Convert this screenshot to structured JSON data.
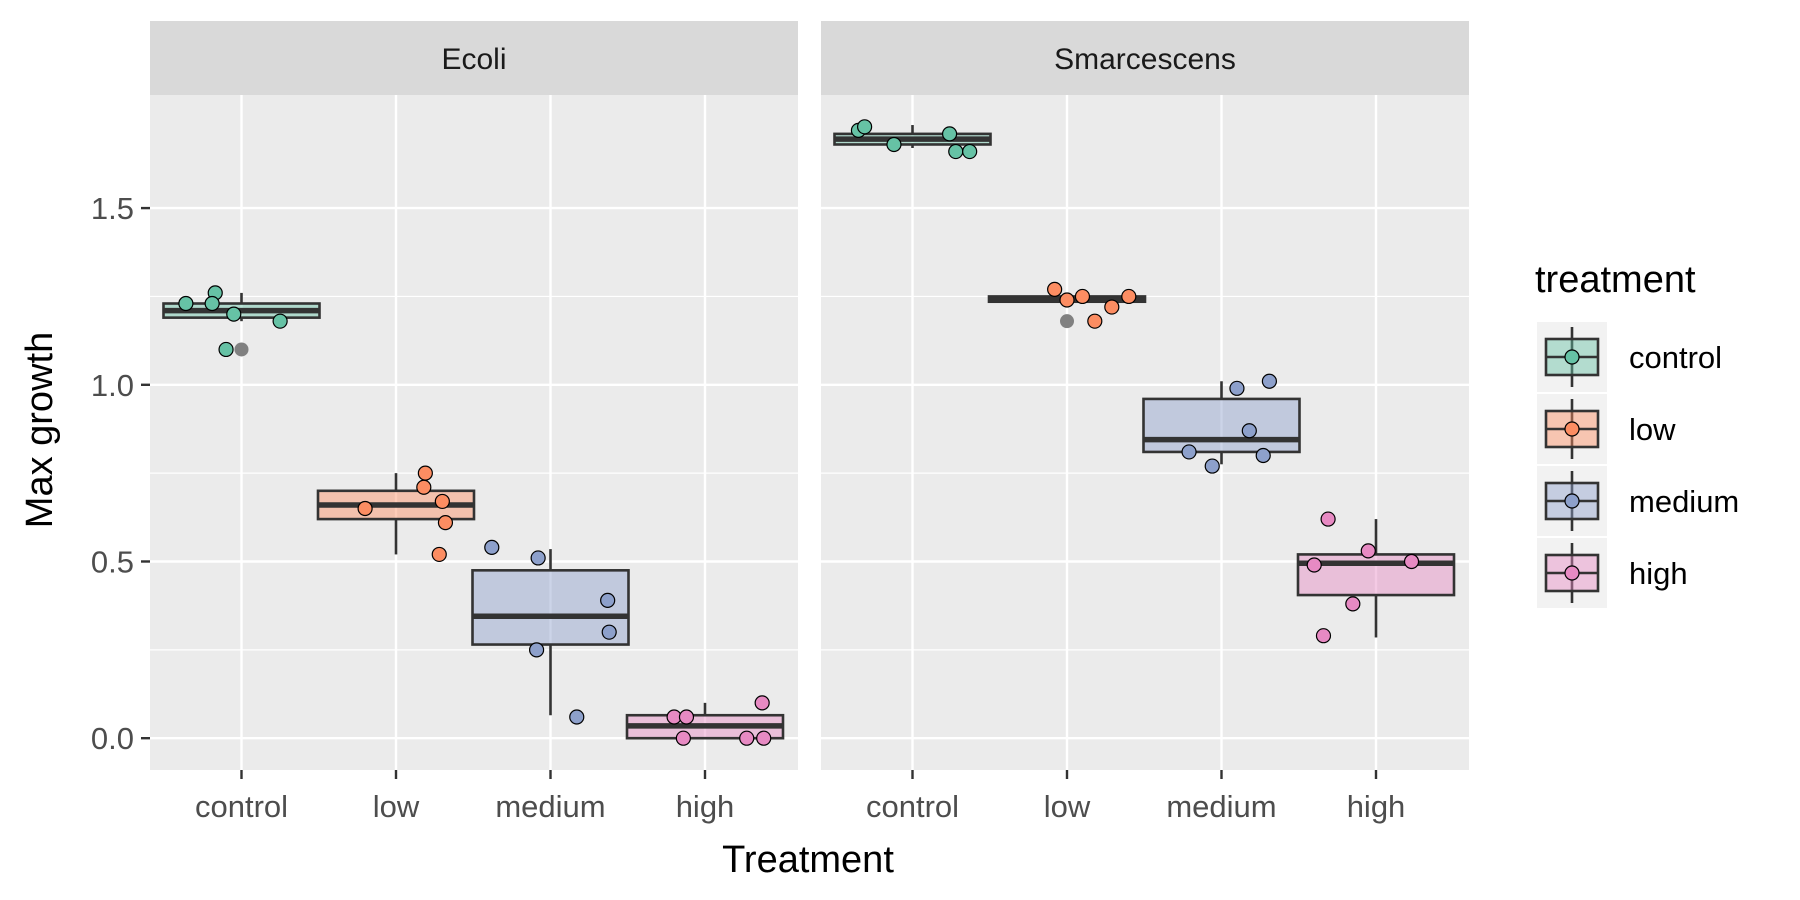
{
  "chart_data": {
    "type": "box",
    "xlabel": "Treatment",
    "ylabel": "Max growth",
    "categories": [
      "control",
      "low",
      "medium",
      "high"
    ],
    "ylim": [
      -0.09,
      1.82
    ],
    "yticks": [
      0.0,
      0.5,
      1.0,
      1.5
    ],
    "ytick_labels": [
      "0.0",
      "0.5",
      "1.0",
      "1.5"
    ],
    "colors": {
      "control": "#66c2a5",
      "low": "#fc8d62",
      "medium": "#8da0cb",
      "high": "#e78ac3",
      "outlier": "#808080",
      "panel_bg": "#ebebeb",
      "strip_bg": "#d9d9d9",
      "grid": "#ffffff",
      "box_line": "#333333"
    },
    "legend": {
      "title": "treatment",
      "items": [
        "control",
        "low",
        "medium",
        "high"
      ],
      "position": "right"
    },
    "panels": [
      {
        "name": "Ecoli",
        "boxes": [
          {
            "category": "control",
            "q1": 1.19,
            "median": 1.21,
            "q3": 1.23,
            "whisker_low": 1.18,
            "whisker_high": 1.26,
            "outliers": [
              1.1
            ]
          },
          {
            "category": "low",
            "q1": 0.62,
            "median": 0.66,
            "q3": 0.7,
            "whisker_low": 0.52,
            "whisker_high": 0.75,
            "outliers": []
          },
          {
            "category": "medium",
            "q1": 0.265,
            "median": 0.345,
            "q3": 0.475,
            "whisker_low": 0.065,
            "whisker_high": 0.535,
            "outliers": []
          },
          {
            "category": "high",
            "q1": 0.0,
            "median": 0.035,
            "q3": 0.065,
            "whisker_low": 0.0,
            "whisker_high": 0.1,
            "outliers": []
          }
        ],
        "points": [
          {
            "category": "control",
            "offset": -0.36,
            "value": 1.23
          },
          {
            "category": "control",
            "offset": -0.17,
            "value": 1.26
          },
          {
            "category": "control",
            "offset": -0.19,
            "value": 1.23
          },
          {
            "category": "control",
            "offset": -0.05,
            "value": 1.2
          },
          {
            "category": "control",
            "offset": 0.25,
            "value": 1.18
          },
          {
            "category": "control",
            "offset": -0.1,
            "value": 1.1
          },
          {
            "category": "low",
            "offset": -0.2,
            "value": 0.65
          },
          {
            "category": "low",
            "offset": 0.18,
            "value": 0.71
          },
          {
            "category": "low",
            "offset": 0.19,
            "value": 0.75
          },
          {
            "category": "low",
            "offset": 0.3,
            "value": 0.67
          },
          {
            "category": "low",
            "offset": 0.32,
            "value": 0.61
          },
          {
            "category": "low",
            "offset": 0.28,
            "value": 0.52
          },
          {
            "category": "medium",
            "offset": -0.38,
            "value": 0.54
          },
          {
            "category": "medium",
            "offset": -0.08,
            "value": 0.51
          },
          {
            "category": "medium",
            "offset": -0.09,
            "value": 0.25
          },
          {
            "category": "medium",
            "offset": 0.37,
            "value": 0.39
          },
          {
            "category": "medium",
            "offset": 0.38,
            "value": 0.3
          },
          {
            "category": "medium",
            "offset": 0.17,
            "value": 0.06
          },
          {
            "category": "high",
            "offset": -0.2,
            "value": 0.06
          },
          {
            "category": "high",
            "offset": -0.12,
            "value": 0.06
          },
          {
            "category": "high",
            "offset": -0.14,
            "value": 0.0
          },
          {
            "category": "high",
            "offset": 0.27,
            "value": 0.0
          },
          {
            "category": "high",
            "offset": 0.37,
            "value": 0.1
          },
          {
            "category": "high",
            "offset": 0.38,
            "value": 0.0
          }
        ]
      },
      {
        "name": "Smarcescens",
        "boxes": [
          {
            "category": "control",
            "q1": 1.68,
            "median": 1.695,
            "q3": 1.71,
            "whisker_low": 1.67,
            "whisker_high": 1.735,
            "outliers": []
          },
          {
            "category": "low",
            "q1": 1.235,
            "median": 1.24,
            "q3": 1.25,
            "whisker_low": 1.235,
            "whisker_high": 1.255,
            "outliers": [
              1.18
            ]
          },
          {
            "category": "medium",
            "q1": 0.81,
            "median": 0.845,
            "q3": 0.96,
            "whisker_low": 0.775,
            "whisker_high": 1.01,
            "outliers": []
          },
          {
            "category": "high",
            "q1": 0.405,
            "median": 0.495,
            "q3": 0.52,
            "whisker_low": 0.285,
            "whisker_high": 0.62,
            "outliers": []
          }
        ],
        "points": [
          {
            "category": "control",
            "offset": -0.35,
            "value": 1.72
          },
          {
            "category": "control",
            "offset": -0.31,
            "value": 1.73
          },
          {
            "category": "control",
            "offset": -0.12,
            "value": 1.68
          },
          {
            "category": "control",
            "offset": 0.24,
            "value": 1.71
          },
          {
            "category": "control",
            "offset": 0.28,
            "value": 1.66
          },
          {
            "category": "control",
            "offset": 0.37,
            "value": 1.66
          },
          {
            "category": "low",
            "offset": -0.08,
            "value": 1.27
          },
          {
            "category": "low",
            "offset": 0.0,
            "value": 1.24
          },
          {
            "category": "low",
            "offset": 0.1,
            "value": 1.25
          },
          {
            "category": "low",
            "offset": 0.29,
            "value": 1.22
          },
          {
            "category": "low",
            "offset": 0.4,
            "value": 1.25
          },
          {
            "category": "low",
            "offset": 0.18,
            "value": 1.18
          },
          {
            "category": "medium",
            "offset": -0.21,
            "value": 0.81
          },
          {
            "category": "medium",
            "offset": -0.06,
            "value": 0.77
          },
          {
            "category": "medium",
            "offset": 0.1,
            "value": 0.99
          },
          {
            "category": "medium",
            "offset": 0.18,
            "value": 0.87
          },
          {
            "category": "medium",
            "offset": 0.27,
            "value": 0.8
          },
          {
            "category": "medium",
            "offset": 0.31,
            "value": 1.01
          },
          {
            "category": "high",
            "offset": -0.4,
            "value": 0.49
          },
          {
            "category": "high",
            "offset": -0.31,
            "value": 0.62
          },
          {
            "category": "high",
            "offset": -0.34,
            "value": 0.29
          },
          {
            "category": "high",
            "offset": -0.15,
            "value": 0.38
          },
          {
            "category": "high",
            "offset": -0.05,
            "value": 0.53
          },
          {
            "category": "high",
            "offset": 0.23,
            "value": 0.5
          }
        ]
      }
    ]
  }
}
